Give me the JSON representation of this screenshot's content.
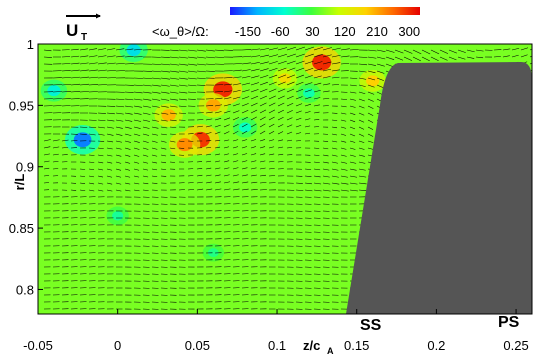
{
  "chart_data": {
    "type": "heatmap",
    "title": "",
    "xlabel": "z/c",
    "xlabel_sub": "A",
    "ylabel": "r/L",
    "xlim": [
      -0.05,
      0.26
    ],
    "ylim": [
      0.78,
      1.0
    ],
    "xticks": [
      -0.05,
      0,
      0.05,
      0.1,
      0.15,
      0.2,
      0.25
    ],
    "xtick_labels": [
      "-0.05",
      "0",
      "0.05",
      "0.1",
      "0.15",
      "0.2",
      "0.25"
    ],
    "yticks": [
      0.8,
      0.85,
      0.9,
      0.95,
      1.0
    ],
    "ytick_labels": [
      "0.8",
      "0.85",
      "0.9",
      "0.95",
      "1"
    ],
    "colorbar": {
      "label": "<ω_θ>/Ω:",
      "ticks": [
        -150,
        -60,
        30,
        120,
        210,
        300
      ],
      "tick_labels": [
        "-150",
        "-60",
        "30",
        "120",
        "210",
        "300"
      ],
      "range": [
        -200,
        330
      ],
      "colors": [
        "#1a1aff",
        "#00b4ff",
        "#00ffd0",
        "#3cff3c",
        "#c8ff00",
        "#ffd200",
        "#ff6a00",
        "#e60000"
      ]
    },
    "reference_vector": {
      "label": "U",
      "subscript": "T"
    },
    "blade_labels": [
      "SS",
      "PS"
    ],
    "blade_color": "#555555",
    "background_value": 60,
    "hotspots": [
      {
        "z": 0.066,
        "r": 0.963,
        "value": 300
      },
      {
        "z": 0.06,
        "r": 0.95,
        "value": 210
      },
      {
        "z": 0.128,
        "r": 0.985,
        "value": 300
      },
      {
        "z": 0.052,
        "r": 0.922,
        "value": 290
      },
      {
        "z": 0.042,
        "r": 0.918,
        "value": 230
      },
      {
        "z": 0.032,
        "r": 0.942,
        "value": 200
      },
      {
        "z": 0.16,
        "r": 0.97,
        "value": 180
      },
      {
        "z": 0.105,
        "r": 0.972,
        "value": 160
      },
      {
        "z": -0.022,
        "r": 0.922,
        "value": -150
      },
      {
        "z": -0.04,
        "r": 0.962,
        "value": -60
      },
      {
        "z": 0.01,
        "r": 0.995,
        "value": -80
      },
      {
        "z": 0.08,
        "r": 0.932,
        "value": -40
      },
      {
        "z": 0.12,
        "r": 0.96,
        "value": -30
      },
      {
        "z": 0.0,
        "r": 0.86,
        "value": -20
      },
      {
        "z": 0.06,
        "r": 0.83,
        "value": -10
      }
    ]
  }
}
